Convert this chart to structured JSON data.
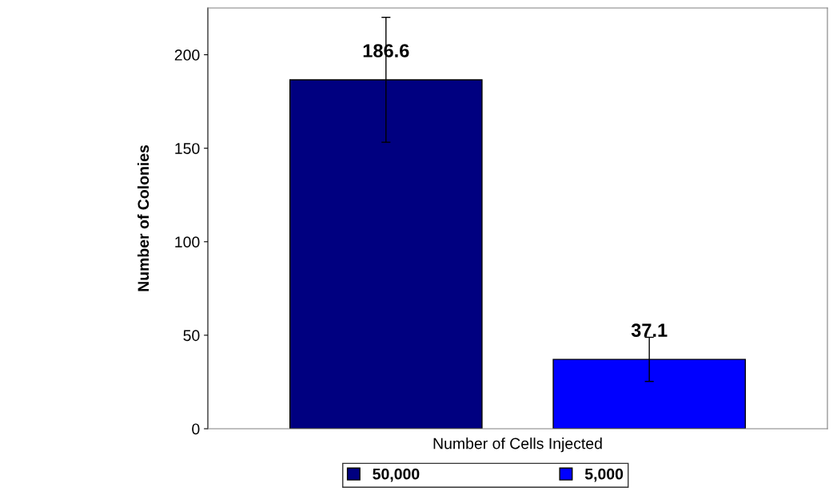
{
  "chart_data": {
    "type": "bar",
    "categories": [
      "Number of Cells Injected"
    ],
    "ylabel": "Number of Colonies",
    "series": [
      {
        "name": "50,000",
        "color": "#000080",
        "values": [
          186.6
        ],
        "errors": [
          33.4
        ]
      },
      {
        "name": "5,000",
        "color": "#0000ff",
        "values": [
          37.1
        ],
        "errors": [
          11.8
        ]
      }
    ],
    "ylim": [
      0,
      225
    ],
    "yticks": [
      0,
      50,
      100,
      150,
      200
    ],
    "data_labels": true,
    "legend": "bottom",
    "grid": false
  }
}
